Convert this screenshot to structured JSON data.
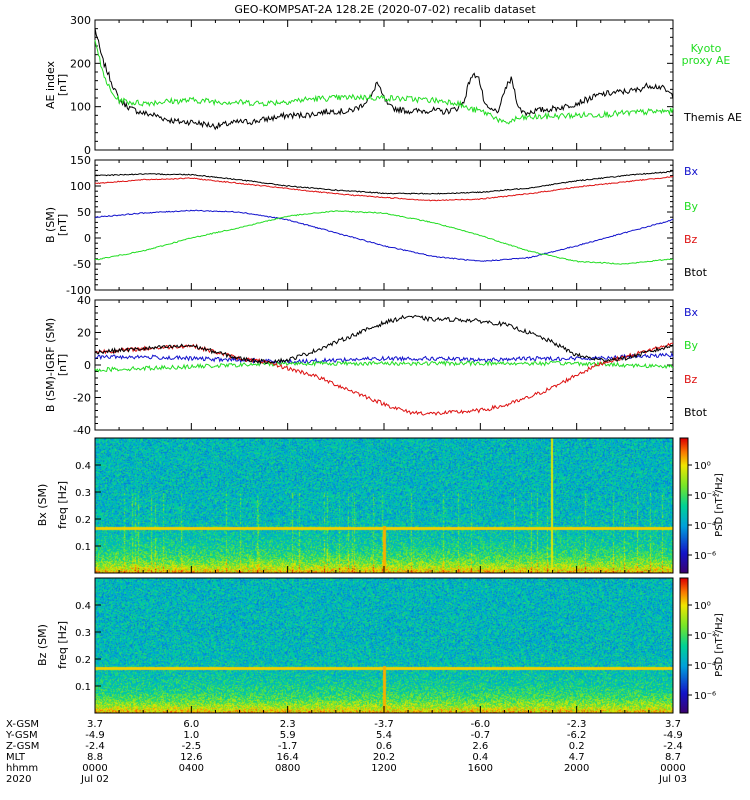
{
  "title": "GEO-KOMPSAT-2A 128.2E (2020-07-02) recalib dataset",
  "colors": {
    "black": "#000000",
    "red": "#dd1111",
    "blue": "#1111cc",
    "green": "#22dd22"
  },
  "chart_data": [
    {
      "id": "ae",
      "type": "line",
      "ylabel": "AE index",
      "yunit": "[nT]",
      "ylim": [
        0,
        300
      ],
      "yticks": [
        0,
        100,
        200,
        300
      ],
      "xlim": [
        0,
        24
      ],
      "series": [
        {
          "name": "Themis AE",
          "color": "black",
          "x": [
            0,
            0.3,
            0.7,
            1,
            1.5,
            2,
            2.5,
            3,
            3.5,
            4,
            4.5,
            5,
            5.5,
            6,
            6.5,
            7,
            7.5,
            8,
            8.5,
            9,
            9.5,
            10,
            10.5,
            11,
            11.5,
            11.7,
            11.9,
            12.2,
            12.5,
            13,
            13.5,
            14,
            14.5,
            15,
            15.3,
            15.6,
            15.9,
            16.2,
            16.5,
            16.8,
            17,
            17.3,
            17.6,
            17.9,
            18.2,
            18.5,
            19,
            19.5,
            20,
            20.5,
            21,
            21.5,
            22,
            22.5,
            23,
            23.5,
            24
          ],
          "y": [
            280,
            210,
            155,
            115,
            95,
            85,
            80,
            70,
            65,
            65,
            60,
            55,
            60,
            65,
            65,
            70,
            75,
            80,
            80,
            82,
            88,
            90,
            88,
            100,
            125,
            158,
            130,
            100,
            95,
            90,
            90,
            92,
            88,
            95,
            110,
            168,
            175,
            100,
            90,
            92,
            138,
            165,
            95,
            85,
            90,
            92,
            95,
            100,
            108,
            118,
            128,
            132,
            135,
            138,
            150,
            145,
            125
          ]
        },
        {
          "name": "Kyoto proxy AE",
          "color": "green",
          "label_lines": [
            "Kyoto",
            "proxy AE"
          ],
          "x": [
            0,
            0.3,
            0.7,
            1,
            1.5,
            2,
            3,
            4,
            5,
            6,
            7,
            8,
            9,
            10,
            11,
            12,
            13,
            14,
            15,
            15.5,
            16,
            16.5,
            17,
            17.5,
            18,
            19,
            20,
            21,
            22,
            23,
            24
          ],
          "y": [
            260,
            180,
            130,
            115,
            110,
            108,
            112,
            115,
            112,
            110,
            108,
            112,
            118,
            120,
            122,
            120,
            118,
            115,
            110,
            95,
            90,
            80,
            60,
            72,
            75,
            78,
            80,
            82,
            85,
            88,
            90
          ]
        }
      ]
    },
    {
      "id": "bsm",
      "type": "line",
      "ylabel": "B (SM)",
      "yunit": "[nT]",
      "ylim": [
        -100,
        150
      ],
      "yticks": [
        -100,
        -50,
        0,
        50,
        100,
        150
      ],
      "xlim": [
        0,
        24
      ],
      "series": [
        {
          "name": "Bx",
          "color": "blue",
          "x": [
            0,
            2,
            4,
            6,
            8,
            10,
            12,
            14,
            16,
            18,
            20,
            22,
            24
          ],
          "y": [
            40,
            48,
            53,
            50,
            35,
            10,
            -15,
            -35,
            -45,
            -38,
            -15,
            10,
            35
          ]
        },
        {
          "name": "By",
          "color": "green",
          "x": [
            0,
            2,
            4,
            6,
            8,
            10,
            12,
            14,
            16,
            18,
            20,
            22,
            24
          ],
          "y": [
            -42,
            -25,
            0,
            20,
            42,
            52,
            48,
            30,
            5,
            -25,
            -45,
            -50,
            -40
          ]
        },
        {
          "name": "Bz",
          "color": "red",
          "x": [
            0,
            2,
            4,
            6,
            8,
            10,
            12,
            14,
            16,
            18,
            20,
            22,
            24
          ],
          "y": [
            105,
            112,
            115,
            105,
            95,
            85,
            78,
            72,
            75,
            85,
            98,
            108,
            118
          ]
        },
        {
          "name": "Btot",
          "color": "black",
          "x": [
            0,
            2,
            4,
            6,
            8,
            10,
            12,
            14,
            16,
            18,
            20,
            22,
            24
          ],
          "y": [
            120,
            123,
            122,
            112,
            100,
            92,
            86,
            85,
            88,
            96,
            110,
            120,
            128
          ]
        }
      ]
    },
    {
      "id": "bigrf",
      "type": "line",
      "ylabel": "B (SM)-IGRF (SM)",
      "yunit": "[nT]",
      "ylim": [
        -40,
        40
      ],
      "yticks": [
        -40,
        -20,
        0,
        20,
        40
      ],
      "xlim": [
        0,
        24
      ],
      "series": [
        {
          "name": "Bx",
          "color": "blue",
          "x": [
            0,
            2,
            4,
            6,
            8,
            10,
            12,
            14,
            16,
            18,
            20,
            22,
            24
          ],
          "y": [
            5,
            5,
            4,
            3,
            2,
            3,
            4,
            4,
            3,
            4,
            4,
            5,
            6
          ]
        },
        {
          "name": "By",
          "color": "green",
          "x": [
            0,
            2,
            4,
            6,
            8,
            10,
            12,
            14,
            16,
            18,
            20,
            22,
            24
          ],
          "y": [
            -3,
            -2,
            -1,
            0,
            1,
            1,
            1,
            1,
            1,
            1,
            1,
            0,
            -1
          ]
        },
        {
          "name": "Bz",
          "color": "red",
          "x": [
            0,
            1,
            2,
            3,
            4,
            5,
            6,
            7,
            8,
            9,
            10,
            11,
            12,
            13,
            14,
            15,
            16,
            17,
            18,
            19,
            20,
            21,
            22,
            23,
            24
          ],
          "y": [
            8,
            9,
            10,
            11,
            12,
            8,
            4,
            2,
            -2,
            -6,
            -12,
            -18,
            -24,
            -29,
            -30,
            -29,
            -28,
            -25,
            -20,
            -14,
            -6,
            1,
            5,
            9,
            13
          ]
        },
        {
          "name": "Btot",
          "color": "black",
          "x": [
            0,
            1,
            2,
            3,
            4,
            5,
            6,
            7,
            8,
            9,
            10,
            11,
            12,
            13,
            14,
            15,
            16,
            17,
            18,
            19,
            20,
            21,
            22,
            23,
            24
          ],
          "y": [
            8,
            9,
            10,
            11,
            12,
            8,
            4,
            2,
            3,
            8,
            14,
            20,
            26,
            30,
            28,
            28,
            27,
            25,
            20,
            14,
            6,
            3,
            4,
            8,
            12
          ]
        }
      ]
    },
    {
      "id": "bx_spec",
      "type": "heatmap",
      "ylabel": "Bx (SM)",
      "yunit": "freq [Hz]",
      "ylim": [
        0,
        0.5
      ],
      "yticks": [
        0.1,
        0.2,
        0.3,
        0.4
      ],
      "colorbar_label": "PSD [nT²/Hz]",
      "colorbar_ticks": [
        "10⁰",
        "10⁻²",
        "10⁻⁴",
        "10⁻⁶"
      ],
      "notable_line_hz": 0.167
    },
    {
      "id": "bz_spec",
      "type": "heatmap",
      "ylabel": "Bz (SM)",
      "yunit": "freq [Hz]",
      "ylim": [
        0,
        0.5
      ],
      "yticks": [
        0.1,
        0.2,
        0.3,
        0.4
      ],
      "colorbar_label": "PSD [nT²/Hz]",
      "colorbar_ticks": [
        "10⁰",
        "10⁻²",
        "10⁻⁴",
        "10⁻⁶"
      ],
      "notable_line_hz": 0.167
    }
  ],
  "xaxis": {
    "row_labels": [
      "X-GSM",
      "Y-GSM",
      "Z-GSM",
      "MLT",
      "hhmm",
      "2020"
    ],
    "columns": [
      {
        "values": [
          "3.7",
          "-4.9",
          "-2.4",
          "8.8",
          "0000",
          "Jul 02"
        ]
      },
      {
        "values": [
          "6.0",
          "1.0",
          "-2.5",
          "12.6",
          "0400",
          ""
        ]
      },
      {
        "values": [
          "2.3",
          "5.9",
          "-1.7",
          "16.4",
          "0800",
          ""
        ]
      },
      {
        "values": [
          "-3.7",
          "5.4",
          "0.6",
          "20.2",
          "1200",
          ""
        ]
      },
      {
        "values": [
          "-6.0",
          "-0.7",
          "2.6",
          "0.4",
          "1600",
          ""
        ]
      },
      {
        "values": [
          "-2.3",
          "-6.2",
          "0.2",
          "4.7",
          "2000",
          ""
        ]
      },
      {
        "values": [
          "3.7",
          "-4.9",
          "-2.4",
          "8.7",
          "0000",
          "Jul 03"
        ]
      }
    ]
  }
}
